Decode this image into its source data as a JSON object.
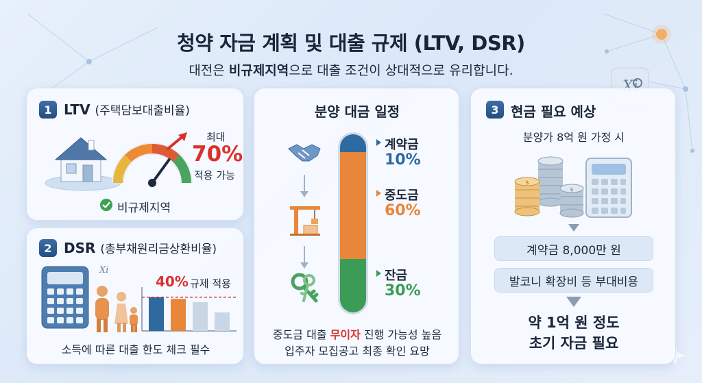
{
  "title": "청약 자금 계획 및 대출 규제 (LTV, DSR)",
  "subtitle": {
    "pre": "대전은 ",
    "bold": "비규제지역",
    "post": "으로 대출 조건이 상대적으로 유리합니다."
  },
  "ltv": {
    "number": "1",
    "title": "LTV",
    "title_sub": "(주택담보대출비율)",
    "max_label": "최대",
    "value": "70%",
    "value_note": "적용 가능",
    "region_label": "비규제지역",
    "gauge_fraction": 0.7,
    "accent": "#d9322c"
  },
  "dsr": {
    "number": "2",
    "title": "DSR",
    "title_sub": "(총부채원리금상환비율)",
    "limit_value": "40%",
    "limit_note": "규제 적용",
    "footer": "소득에 따른 대출 한도 체크 필수",
    "bar_levels": [
      0.82,
      0.78,
      0.7,
      0.45
    ],
    "limit_level": 0.82
  },
  "schedule": {
    "title": "분양 대금 일정",
    "stages": [
      {
        "label": "계약금",
        "value": "10%",
        "color": "#2e6aa0",
        "fraction": 0.1
      },
      {
        "label": "중도금",
        "value": "60%",
        "color": "#e8863a",
        "fraction": 0.6
      },
      {
        "label": "잔금",
        "value": "30%",
        "color": "#3c9c55",
        "fraction": 0.3
      }
    ],
    "note1_pre": "중도금 대출 ",
    "note1_highlight": "무이자",
    "note1_post": " 진행 가능성 높음",
    "note2": "입주자 모집공고 최종 확인 요망"
  },
  "cash": {
    "number": "3",
    "title": "현금 필요 예상",
    "assumption": "분양가 8억 원 가정 시",
    "item1": "계약금 8,000만 원",
    "item2": "발코니 확장비 등 부대비용",
    "total_line1": "약 1억 원 정도",
    "total_line2": "초기 자금 필요"
  },
  "icons": {
    "house": "house-icon",
    "gauge": "gauge-icon",
    "check": "check-icon",
    "calculator": "calculator-icon",
    "family": "family-icon",
    "handshake": "handshake-icon",
    "crane": "crane-icon",
    "keys": "keys-icon",
    "coins": "coins-icon",
    "logo": "xi-logo-icon"
  }
}
